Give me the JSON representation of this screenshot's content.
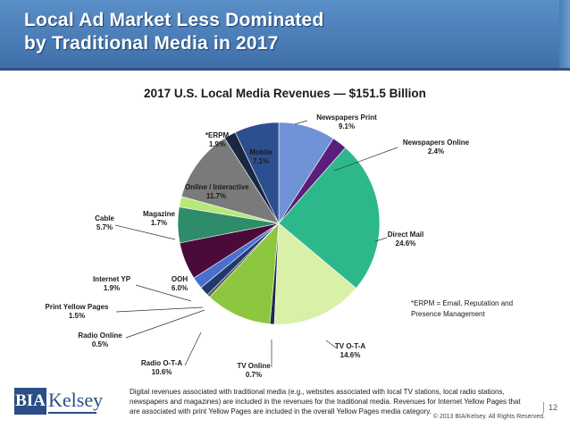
{
  "slide": {
    "title_line1": "Local Ad Market Less Dominated",
    "title_line2": "by Traditional Media in 2017",
    "page_number": "12",
    "copyright": "© 2013 BIA/Kelsey. All Rights Reserved.",
    "footnote": "Digital revenues associated with traditional media (e.g., websites associated with local TV stations, local radio stations, newspapers and magazines) are included in the revenues for the traditional media. Revenues for Internet Yellow Pages that are associated with print Yellow Pages are included in the overall Yellow Pages media category.",
    "note": "*ERPM = Email, Reputation and Presence Management",
    "logo_left": "BIA",
    "logo_right": "Kelsey"
  },
  "chart_data": {
    "type": "pie",
    "title": "2017 U.S. Local Media Revenues — $151.5 Billion",
    "slices": [
      {
        "name": "Newspapers Print",
        "label": "9.1%",
        "value": 9.1,
        "color": "#6f93d6"
      },
      {
        "name": "Newspapers Online",
        "label": "2.4%",
        "value": 2.4,
        "color": "#5a1f7a"
      },
      {
        "name": "Direct Mail",
        "label": "24.6%",
        "value": 24.6,
        "color": "#2db88c"
      },
      {
        "name": "TV O-T-A",
        "label": "14.6%",
        "value": 14.6,
        "color": "#d9f0a8"
      },
      {
        "name": "TV Online",
        "label": "0.7%",
        "value": 0.7,
        "color": "#1e2a4a"
      },
      {
        "name": "Radio O-T-A",
        "label": "10.6%",
        "value": 10.6,
        "color": "#8dc63f"
      },
      {
        "name": "Radio Online",
        "label": "0.5%",
        "value": 0.5,
        "color": "#5b5b5b"
      },
      {
        "name": "Print Yellow Pages",
        "label": "1.5%",
        "value": 1.5,
        "color": "#1f3a6a"
      },
      {
        "name": "Internet YP",
        "label": "1.9%",
        "value": 1.9,
        "color": "#4a6fd0"
      },
      {
        "name": "OOH",
        "label": "6.0%",
        "value": 6.0,
        "color": "#4a0b3a"
      },
      {
        "name": "Cable",
        "label": "5.7%",
        "value": 5.7,
        "color": "#2e8c6b"
      },
      {
        "name": "Magazine",
        "label": "1.7%",
        "value": 1.7,
        "color": "#b9e87a"
      },
      {
        "name": "Online / Interactive",
        "label": "11.7%",
        "value": 11.7,
        "color": "#7a7a7a"
      },
      {
        "name": "*ERPM",
        "label": "1.9%",
        "value": 1.9,
        "color": "#1a2740"
      },
      {
        "name": "Mobile",
        "label": "7.1%",
        "value": 7.1,
        "color": "#2c4f8f"
      }
    ]
  }
}
